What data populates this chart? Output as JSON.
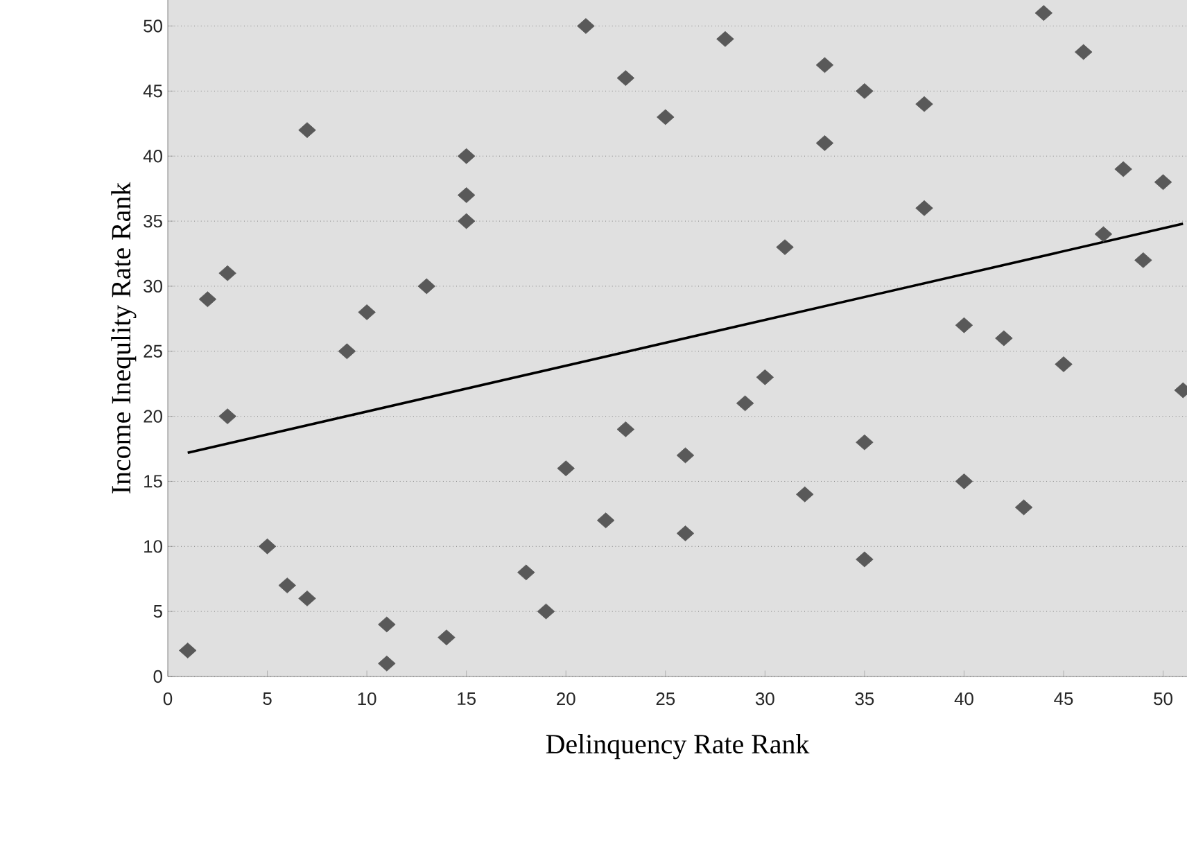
{
  "chart_data": {
    "type": "scatter",
    "xlabel": "Delinquency Rate Rank",
    "ylabel": "Income Inequlity Rate Rank",
    "xlim": [
      0,
      51.2
    ],
    "ylim": [
      0,
      52
    ],
    "xticks": [
      0,
      5,
      10,
      15,
      20,
      25,
      30,
      35,
      40,
      45,
      50
    ],
    "yticks": [
      0,
      5,
      10,
      15,
      20,
      25,
      30,
      35,
      40,
      45,
      50
    ],
    "grid": "y",
    "marker": "diamond",
    "series": [
      {
        "color": "#595959",
        "x": [
          1,
          2,
          3,
          3,
          5,
          6,
          7,
          7,
          9,
          10,
          11,
          11,
          13,
          14,
          15,
          15,
          15,
          18,
          19,
          20,
          21,
          22,
          23,
          23,
          25,
          26,
          26,
          28,
          29,
          30,
          31,
          32,
          33,
          33,
          35,
          35,
          35,
          38,
          38,
          40,
          40,
          42,
          43,
          44,
          45,
          46,
          47,
          48,
          49,
          50,
          51
        ],
        "values": [
          2,
          29,
          31,
          20,
          10,
          7,
          42,
          6,
          25,
          28,
          4,
          1,
          30,
          3,
          40,
          37,
          35,
          8,
          5,
          16,
          50,
          12,
          46,
          19,
          43,
          17,
          11,
          49,
          21,
          23,
          33,
          14,
          47,
          41,
          18,
          45,
          9,
          44,
          36,
          27,
          15,
          26,
          13,
          51,
          24,
          48,
          34,
          39,
          32,
          38,
          22
        ]
      },
      {
        "type": "line",
        "marker": "none",
        "color": "#000000",
        "x": [
          1,
          51
        ],
        "values": [
          17.2,
          34.8
        ]
      }
    ]
  }
}
